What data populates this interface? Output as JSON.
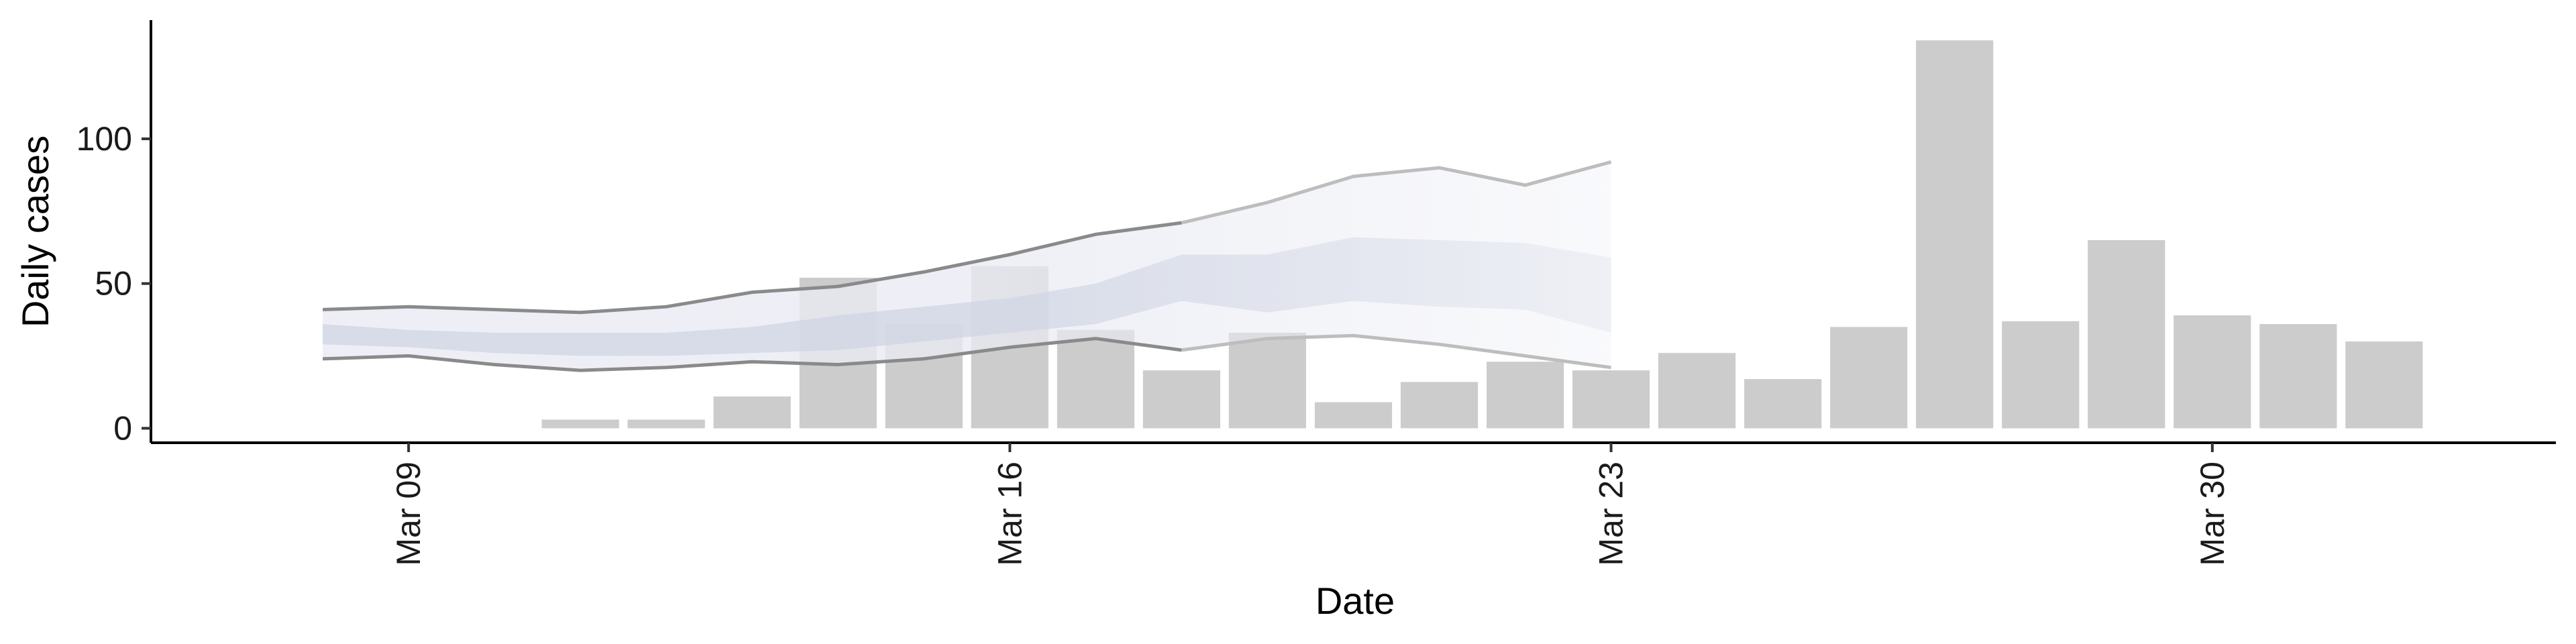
{
  "chart_data": {
    "type": "bar",
    "xlabel": "Date",
    "ylabel": "Daily cases",
    "x_ticks": [
      {
        "date": "2020-03-09",
        "label": "Mar 09"
      },
      {
        "date": "2020-03-16",
        "label": "Mar 16"
      },
      {
        "date": "2020-03-23",
        "label": "Mar 23"
      },
      {
        "date": "2020-03-30",
        "label": "Mar 30"
      }
    ],
    "y_ticks": [
      0,
      50,
      100
    ],
    "xlim": [
      "2020-03-06",
      "2020-04-03"
    ],
    "ylim": [
      -5,
      141
    ],
    "grid": false,
    "colors": {
      "bars": "#cccccc",
      "band_outer": "#e9ebf3",
      "band_inner": "#cfd4e3",
      "interval_line": "#8a8a8a",
      "interval_line_projected": "#bdbdbd"
    },
    "bars": [
      {
        "date": "2020-03-11",
        "value": 3
      },
      {
        "date": "2020-03-12",
        "value": 3
      },
      {
        "date": "2020-03-13",
        "value": 11
      },
      {
        "date": "2020-03-14",
        "value": 52
      },
      {
        "date": "2020-03-15",
        "value": 36
      },
      {
        "date": "2020-03-16",
        "value": 56
      },
      {
        "date": "2020-03-17",
        "value": 34
      },
      {
        "date": "2020-03-18",
        "value": 20
      },
      {
        "date": "2020-03-19",
        "value": 33
      },
      {
        "date": "2020-03-20",
        "value": 9
      },
      {
        "date": "2020-03-21",
        "value": 16
      },
      {
        "date": "2020-03-22",
        "value": 23
      },
      {
        "date": "2020-03-23",
        "value": 20
      },
      {
        "date": "2020-03-24",
        "value": 26
      },
      {
        "date": "2020-03-25",
        "value": 17
      },
      {
        "date": "2020-03-26",
        "value": 35
      },
      {
        "date": "2020-03-27",
        "value": 134
      },
      {
        "date": "2020-03-28",
        "value": 37
      },
      {
        "date": "2020-03-29",
        "value": 65
      },
      {
        "date": "2020-03-30",
        "value": 39
      },
      {
        "date": "2020-03-31",
        "value": 36
      },
      {
        "date": "2020-04-01",
        "value": 30
      }
    ],
    "estimate": {
      "dates": [
        "2020-03-08",
        "2020-03-09",
        "2020-03-10",
        "2020-03-11",
        "2020-03-12",
        "2020-03-13",
        "2020-03-14",
        "2020-03-15",
        "2020-03-16",
        "2020-03-17",
        "2020-03-18",
        "2020-03-19",
        "2020-03-20",
        "2020-03-21",
        "2020-03-22",
        "2020-03-23"
      ],
      "outer_upper": [
        41,
        42,
        41,
        40,
        42,
        47,
        49,
        54,
        60,
        67,
        71,
        78,
        87,
        90,
        84,
        92
      ],
      "inner_upper": [
        36,
        34,
        33,
        33,
        33,
        35,
        39,
        42,
        45,
        50,
        60,
        60,
        66,
        65,
        64,
        59
      ],
      "inner_lower": [
        29,
        28,
        26,
        25,
        25,
        26,
        27,
        30,
        33,
        36,
        44,
        40,
        44,
        42,
        41,
        33
      ],
      "outer_lower": [
        24,
        25,
        22,
        20,
        21,
        23,
        22,
        24,
        28,
        31,
        27,
        31,
        32,
        29,
        25,
        21
      ],
      "projection_start": "2020-03-18"
    }
  }
}
